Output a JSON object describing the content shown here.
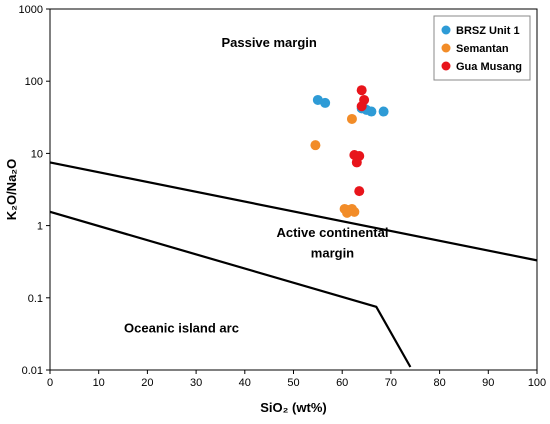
{
  "chart_data": {
    "type": "scatter",
    "xlabel": "SiO₂ (wt%)",
    "ylabel": "K₂O/Na₂O",
    "xlim": [
      0,
      100
    ],
    "ylim": [
      0.01,
      1000
    ],
    "y_scale": "log",
    "grid": false,
    "legend_position": "top-right",
    "x_ticks": [
      "0",
      "10",
      "20",
      "30",
      "40",
      "50",
      "60",
      "70",
      "80",
      "90",
      "100"
    ],
    "y_ticks": [
      "0.01",
      "0.1",
      "1",
      "10",
      "100",
      "1000"
    ],
    "series": [
      {
        "name": "BRSZ Unit 1",
        "color": "#2E9BD6",
        "points": [
          [
            55,
            55
          ],
          [
            56.5,
            50
          ],
          [
            64,
            42
          ],
          [
            66,
            38
          ],
          [
            68.5,
            38
          ],
          [
            64.5,
            42
          ],
          [
            65,
            40
          ]
        ]
      },
      {
        "name": "Semantan",
        "color": "#F28C28",
        "points": [
          [
            54.5,
            13
          ],
          [
            62,
            30
          ],
          [
            60.5,
            1.7
          ],
          [
            61,
            1.5
          ],
          [
            62,
            1.7
          ],
          [
            62.5,
            1.55
          ],
          [
            61,
            1.65
          ]
        ]
      },
      {
        "name": "Gua Musang",
        "color": "#E8141B",
        "points": [
          [
            64,
            75
          ],
          [
            64.5,
            55
          ],
          [
            64,
            45
          ],
          [
            62.5,
            9.5
          ],
          [
            63.5,
            9.2
          ],
          [
            63,
            7.5
          ],
          [
            63.5,
            3
          ]
        ]
      }
    ],
    "boundaries": [
      {
        "points": [
          [
            0,
            7.5
          ],
          [
            100,
            0.33
          ]
        ]
      },
      {
        "points": [
          [
            0,
            1.55
          ],
          [
            67,
            0.075
          ],
          [
            74,
            0.011
          ]
        ]
      }
    ],
    "region_labels": [
      {
        "text": "Passive margin",
        "x": 45,
        "y": 300
      },
      {
        "text": "Active continental",
        "x": 58,
        "y": 0.7
      },
      {
        "text": "margin",
        "x": 58,
        "y": 0.36
      },
      {
        "text": "Oceanic island arc",
        "x": 27,
        "y": 0.033
      }
    ]
  }
}
